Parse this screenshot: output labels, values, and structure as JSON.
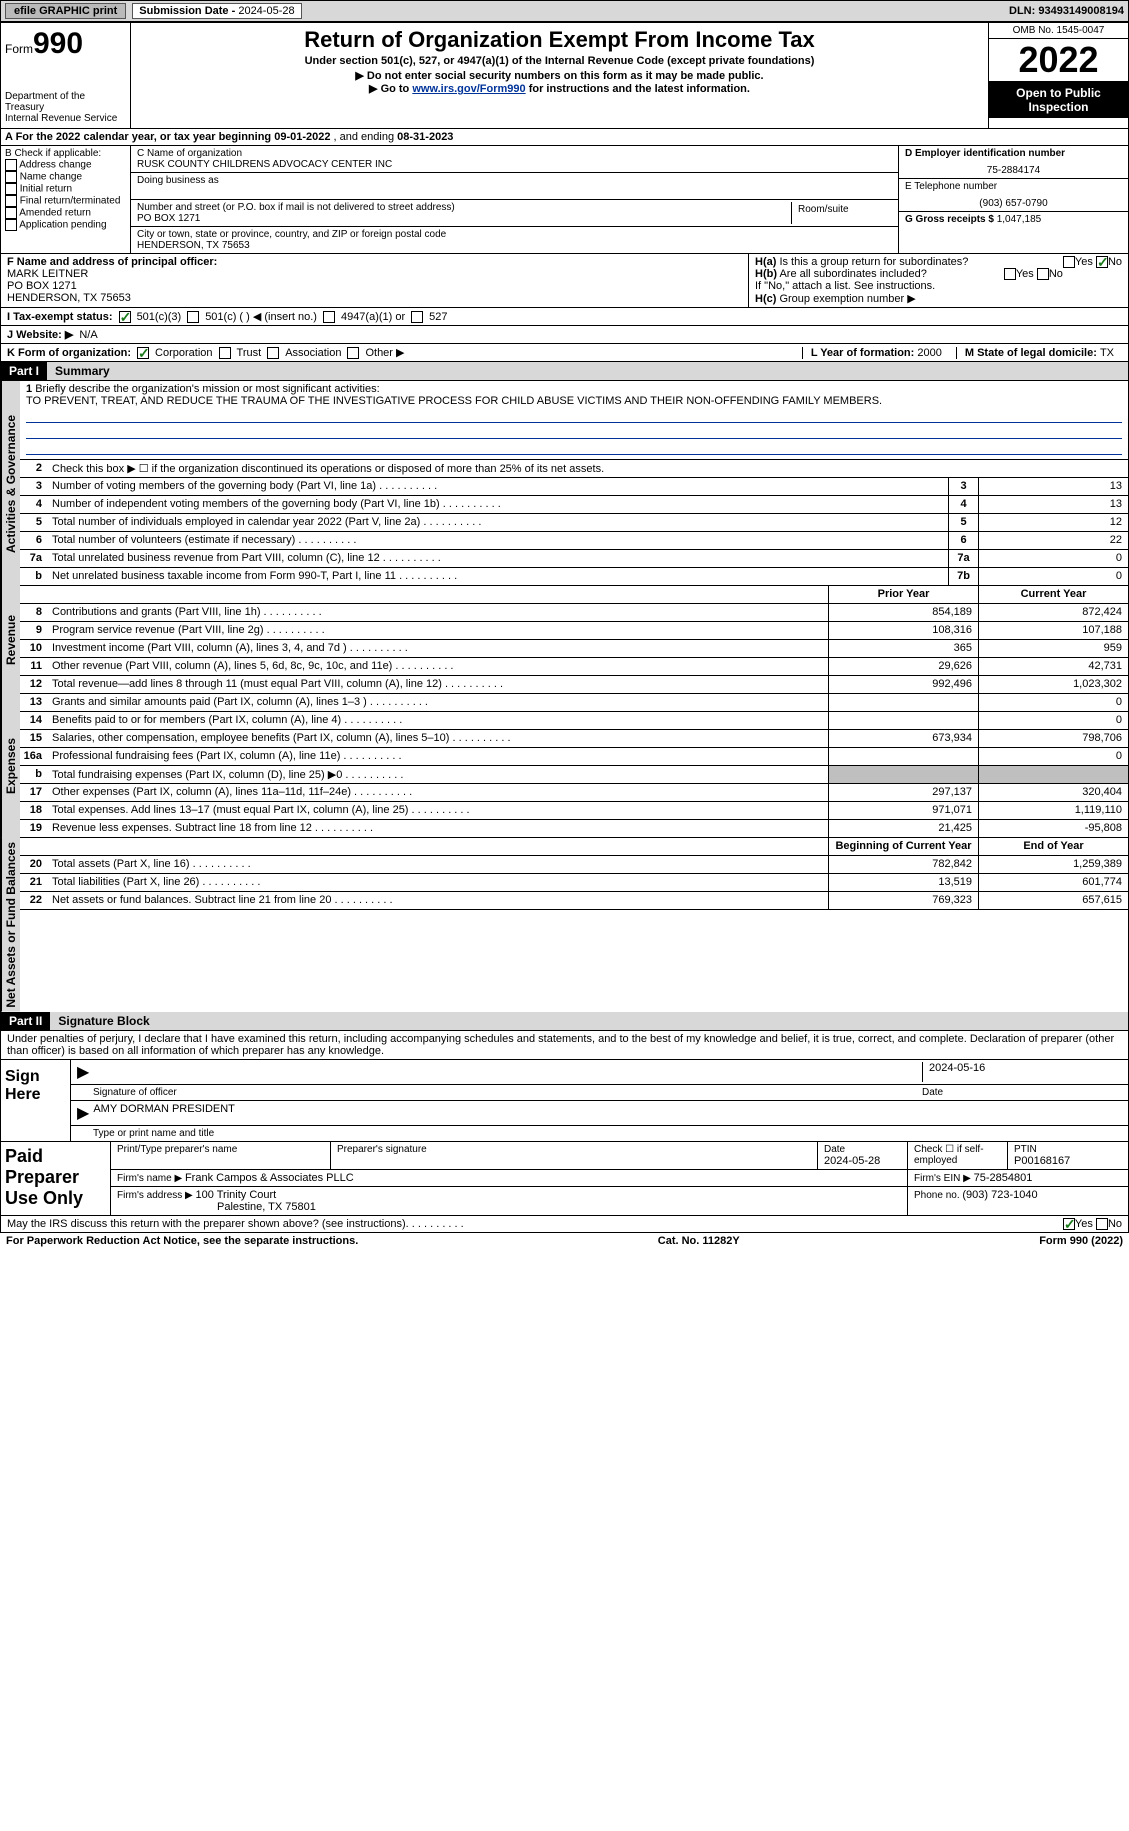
{
  "topbar": {
    "efile": "efile GRAPHIC print",
    "submission_label": "Submission Date - ",
    "submission_date": "2024-05-28",
    "dln_label": "DLN: ",
    "dln": "93493149008194"
  },
  "header": {
    "form_label": "Form",
    "form_num": "990",
    "dept": "Department of the Treasury",
    "irs": "Internal Revenue Service",
    "title": "Return of Organization Exempt From Income Tax",
    "sub1": "Under section 501(c), 527, or 4947(a)(1) of the Internal Revenue Code (except private foundations)",
    "sub2": "▶ Do not enter social security numbers on this form as it may be made public.",
    "sub3_pre": "▶ Go to ",
    "sub3_link": "www.irs.gov/Form990",
    "sub3_post": " for instructions and the latest information.",
    "omb": "OMB No. 1545-0047",
    "year": "2022",
    "otp": "Open to Public Inspection"
  },
  "row_a": {
    "label": "A For the 2022 calendar year, or tax year beginning ",
    "begin": "09-01-2022",
    "mid": " , and ending ",
    "end": "08-31-2023"
  },
  "col_b": {
    "title": "B Check if applicable:",
    "items": [
      "Address change",
      "Name change",
      "Initial return",
      "Final return/terminated",
      "Amended return",
      "Application pending"
    ]
  },
  "col_c": {
    "name_label": "C Name of organization",
    "name": "RUSK COUNTY CHILDRENS ADVOCACY CENTER INC",
    "dba_label": "Doing business as",
    "addr_label": "Number and street (or P.O. box if mail is not delivered to street address)",
    "room_label": "Room/suite",
    "addr": "PO BOX 1271",
    "city_label": "City or town, state or province, country, and ZIP or foreign postal code",
    "city": "HENDERSON, TX  75653"
  },
  "col_d": {
    "d_label": "D Employer identification number",
    "d_val": "75-2884174",
    "e_label": "E Telephone number",
    "e_val": "(903) 657-0790",
    "g_label": "G Gross receipts $ ",
    "g_val": "1,047,185"
  },
  "col_f": {
    "label": "F Name and address of principal officer:",
    "name": "MARK LEITNER",
    "addr1": "PO BOX 1271",
    "addr2": "HENDERSON, TX  75653"
  },
  "col_h": {
    "ha_label": "H(a)  Is this a group return for subordinates?",
    "hb_label": "H(b)  Are all subordinates included?",
    "hb_note": "If \"No,\" attach a list. See instructions.",
    "hc_label": "H(c)  Group exemption number ▶",
    "yes": "Yes",
    "no": "No"
  },
  "row_i": {
    "label": "I   Tax-exempt status:",
    "opt1": "501(c)(3)",
    "opt2": "501(c) (   ) ◀ (insert no.)",
    "opt3": "4947(a)(1) or",
    "opt4": "527"
  },
  "row_j": {
    "label": "J   Website: ▶",
    "val": "N/A"
  },
  "row_k": {
    "label": "K Form of organization:",
    "opts": [
      "Corporation",
      "Trust",
      "Association",
      "Other ▶"
    ],
    "l_label": "L Year of formation: ",
    "l_val": "2000",
    "m_label": "M State of legal domicile: ",
    "m_val": "TX"
  },
  "part1": {
    "num": "Part I",
    "title": "Summary"
  },
  "mission": {
    "num": "1",
    "label": "Briefly describe the organization's mission or most significant activities:",
    "text": "TO PREVENT, TREAT, AND REDUCE THE TRAUMA OF THE INVESTIGATIVE PROCESS FOR CHILD ABUSE VICTIMS AND THEIR NON-OFFENDING FAMILY MEMBERS."
  },
  "line2": "Check this box ▶ ☐  if the organization discontinued its operations or disposed of more than 25% of its net assets.",
  "vtabs": {
    "ag": "Activities & Governance",
    "rev": "Revenue",
    "exp": "Expenses",
    "na": "Net Assets or Fund Balances"
  },
  "lines_top": [
    {
      "n": "3",
      "d": "Number of voting members of the governing body (Part VI, line 1a)",
      "b": "3",
      "v": "13"
    },
    {
      "n": "4",
      "d": "Number of independent voting members of the governing body (Part VI, line 1b)",
      "b": "4",
      "v": "13"
    },
    {
      "n": "5",
      "d": "Total number of individuals employed in calendar year 2022 (Part V, line 2a)",
      "b": "5",
      "v": "12"
    },
    {
      "n": "6",
      "d": "Total number of volunteers (estimate if necessary)",
      "b": "6",
      "v": "22"
    },
    {
      "n": "7a",
      "d": "Total unrelated business revenue from Part VIII, column (C), line 12",
      "b": "7a",
      "v": "0"
    },
    {
      "n": "b",
      "d": "Net unrelated business taxable income from Form 990-T, Part I, line 11",
      "b": "7b",
      "v": "0"
    }
  ],
  "col_hdrs": {
    "py": "Prior Year",
    "cy": "Current Year"
  },
  "lines_rev": [
    {
      "n": "8",
      "d": "Contributions and grants (Part VIII, line 1h)",
      "py": "854,189",
      "cy": "872,424"
    },
    {
      "n": "9",
      "d": "Program service revenue (Part VIII, line 2g)",
      "py": "108,316",
      "cy": "107,188"
    },
    {
      "n": "10",
      "d": "Investment income (Part VIII, column (A), lines 3, 4, and 7d )",
      "py": "365",
      "cy": "959"
    },
    {
      "n": "11",
      "d": "Other revenue (Part VIII, column (A), lines 5, 6d, 8c, 9c, 10c, and 11e)",
      "py": "29,626",
      "cy": "42,731"
    },
    {
      "n": "12",
      "d": "Total revenue—add lines 8 through 11 (must equal Part VIII, column (A), line 12)",
      "py": "992,496",
      "cy": "1,023,302"
    }
  ],
  "lines_exp": [
    {
      "n": "13",
      "d": "Grants and similar amounts paid (Part IX, column (A), lines 1–3 )",
      "py": "",
      "cy": "0"
    },
    {
      "n": "14",
      "d": "Benefits paid to or for members (Part IX, column (A), line 4)",
      "py": "",
      "cy": "0"
    },
    {
      "n": "15",
      "d": "Salaries, other compensation, employee benefits (Part IX, column (A), lines 5–10)",
      "py": "673,934",
      "cy": "798,706"
    },
    {
      "n": "16a",
      "d": "Professional fundraising fees (Part IX, column (A), line 11e)",
      "py": "",
      "cy": "0"
    },
    {
      "n": "b",
      "d": "Total fundraising expenses (Part IX, column (D), line 25) ▶0",
      "py": "grey",
      "cy": "grey"
    },
    {
      "n": "17",
      "d": "Other expenses (Part IX, column (A), lines 11a–11d, 11f–24e)",
      "py": "297,137",
      "cy": "320,404"
    },
    {
      "n": "18",
      "d": "Total expenses. Add lines 13–17 (must equal Part IX, column (A), line 25)",
      "py": "971,071",
      "cy": "1,119,110"
    },
    {
      "n": "19",
      "d": "Revenue less expenses. Subtract line 18 from line 12",
      "py": "21,425",
      "cy": "-95,808"
    }
  ],
  "col_hdrs2": {
    "boy": "Beginning of Current Year",
    "eoy": "End of Year"
  },
  "lines_na": [
    {
      "n": "20",
      "d": "Total assets (Part X, line 16)",
      "py": "782,842",
      "cy": "1,259,389"
    },
    {
      "n": "21",
      "d": "Total liabilities (Part X, line 26)",
      "py": "13,519",
      "cy": "601,774"
    },
    {
      "n": "22",
      "d": "Net assets or fund balances. Subtract line 21 from line 20",
      "py": "769,323",
      "cy": "657,615"
    }
  ],
  "part2": {
    "num": "Part II",
    "title": "Signature Block"
  },
  "penalty": "Under penalties of perjury, I declare that I have examined this return, including accompanying schedules and statements, and to the best of my knowledge and belief, it is true, correct, and complete. Declaration of preparer (other than officer) is based on all information of which preparer has any knowledge.",
  "sign": {
    "label": "Sign Here",
    "sig_label": "Signature of officer",
    "date_label": "Date",
    "date": "2024-05-16",
    "name": "AMY DORMAN  PRESIDENT",
    "name_label": "Type or print name and title"
  },
  "prep": {
    "label": "Paid Preparer Use Only",
    "h1": "Print/Type preparer's name",
    "h2": "Preparer's signature",
    "h3_label": "Date",
    "h3": "2024-05-28",
    "h4_label": "Check ☐ if self-employed",
    "h5_label": "PTIN",
    "h5": "P00168167",
    "firm_label": "Firm's name    ▶ ",
    "firm": "Frank Campos & Associates PLLC",
    "ein_label": "Firm's EIN ▶ ",
    "ein": "75-2854801",
    "addr_label": "Firm's address ▶ ",
    "addr1": "100 Trinity Court",
    "addr2": "Palestine, TX  75801",
    "phone_label": "Phone no. ",
    "phone": "(903) 723-1040"
  },
  "discuss": "May the IRS discuss this return with the preparer shown above? (see instructions)",
  "bottom": {
    "pra": "For Paperwork Reduction Act Notice, see the separate instructions.",
    "cat": "Cat. No. 11282Y",
    "form": "Form 990 (2022)"
  }
}
